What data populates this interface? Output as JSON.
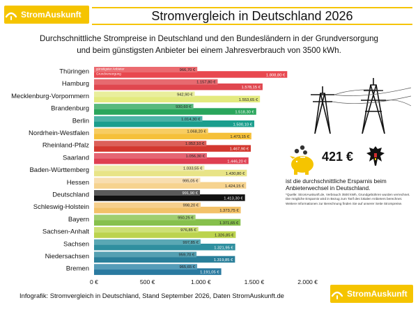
{
  "brand": {
    "name": "StromAuskunft"
  },
  "header": {
    "title": "Stromvergleich in Deutschland 2026"
  },
  "subtitle": {
    "line1": "Durchschnittliche Strompreise in Deutschland und den Bundesländern in der Grundversorgung",
    "line2": "und beim günstigsten Anbieter bei einem Jahresverbrauch von 3500 kWh."
  },
  "chart_data": {
    "type": "bar",
    "orientation": "horizontal",
    "categories": [
      "Thüringen",
      "Hamburg",
      "Mecklenburg-Vorpommern",
      "Brandenburg",
      "Berlin",
      "Nordrhein-Westfalen",
      "Rheinland-Pfalz",
      "Saarland",
      "Baden-Württemberg",
      "Hessen",
      "Deutschland",
      "Schleswig-Holstein",
      "Bayern",
      "Sachsen-Anhalt",
      "Sachsen",
      "Niedersachsen",
      "Bremen"
    ],
    "series": [
      {
        "name": "günstigster Anbieter",
        "values": [
          966.7,
          1157.8,
          942.9,
          930.6,
          1014.3,
          1068.2,
          1052.1,
          1056.3,
          1033.55,
          995.05,
          991.9,
          998.2,
          950.25,
          976.85,
          997.85,
          959.7,
          965.65
        ]
      },
      {
        "name": "Grundversorgung",
        "values": [
          1808.8,
          1578.15,
          1553.65,
          1518.3,
          1500.1,
          1473.15,
          1467.9,
          1446.2,
          1430.8,
          1424.15,
          1413.3,
          1373.75,
          1371.65,
          1326.85,
          1321.95,
          1319.85,
          1191.05
        ]
      }
    ],
    "value_labels": {
      "cheapest": [
        "966,70 €",
        "1.157,80 €",
        "942,90 €",
        "930,60 €",
        "1.014,30 €",
        "1.068,20 €",
        "1.052,10 €",
        "1.056,30 €",
        "1.033,55 €",
        "995,05 €",
        "991,90 €",
        "998,20 €",
        "950,25 €",
        "976,85 €",
        "997,85 €",
        "959,70 €",
        "965,65 €"
      ],
      "base": [
        "1.808,80 €",
        "1.578,15 €",
        "1.553,65 €",
        "1.518,30 €",
        "1.500,10 €",
        "1.473,15 €",
        "1.467,90 €",
        "1.446,20 €",
        "1.430,80 €",
        "1.424,15 €",
        "1.413,30 €",
        "1.373,75 €",
        "1.371,65 €",
        "1.326,85 €",
        "1.321,95 €",
        "1.319,85 €",
        "1.191,05 €"
      ]
    },
    "colors": [
      "#e8484f",
      "#e0474f",
      "#e3ea7e",
      "#2aa65c",
      "#1a9e8e",
      "#f5c03a",
      "#d3382f",
      "#df3f51",
      "#e8e487",
      "#f6d38f",
      "#111111",
      "#f3c168",
      "#86c04c",
      "#bcd34e",
      "#2f8f9f",
      "#2a7f9a",
      "#2a7aa0"
    ],
    "cheap_colors": [
      "#eb6b70",
      "#e76a70",
      "#e9ee9c",
      "#58b97d",
      "#4cb3a6",
      "#f7cd62",
      "#dc6059",
      "#e56573",
      "#eeebab",
      "#f8deb0",
      "#5a5a5a",
      "#f6cf8c",
      "#a0ce70",
      "#cde075",
      "#5aa8b4",
      "#55a0b2",
      "#559cb8"
    ],
    "x_ticks": [
      "0 €",
      "500 €",
      "1.000 €",
      "1.500 €",
      "2.000 €"
    ],
    "xlim": [
      0,
      2000
    ],
    "legend": [
      "günstigster Anbieter",
      "Grundversorgung"
    ]
  },
  "savings": {
    "amount": "421 €",
    "text": "ist die durchschnittliche Ersparnis beim Anbieterwechsel in Deutschland.",
    "note": "*Quelle: StromAuskunft.de, Verbrauch 3500 kWh, Grundgebühren wurden verrechnet. Die mögliche Ersparnis wird in Bezug zum Tarif des lokalen Anbieters berechnet. Weitere Informationen zur Berechnung finden Sie auf unserer Seite Strompreise."
  },
  "footer": {
    "text": "Infografik: Stromvergleich in Deutschland, Stand September 2026, Daten StromAuskunft.de"
  }
}
